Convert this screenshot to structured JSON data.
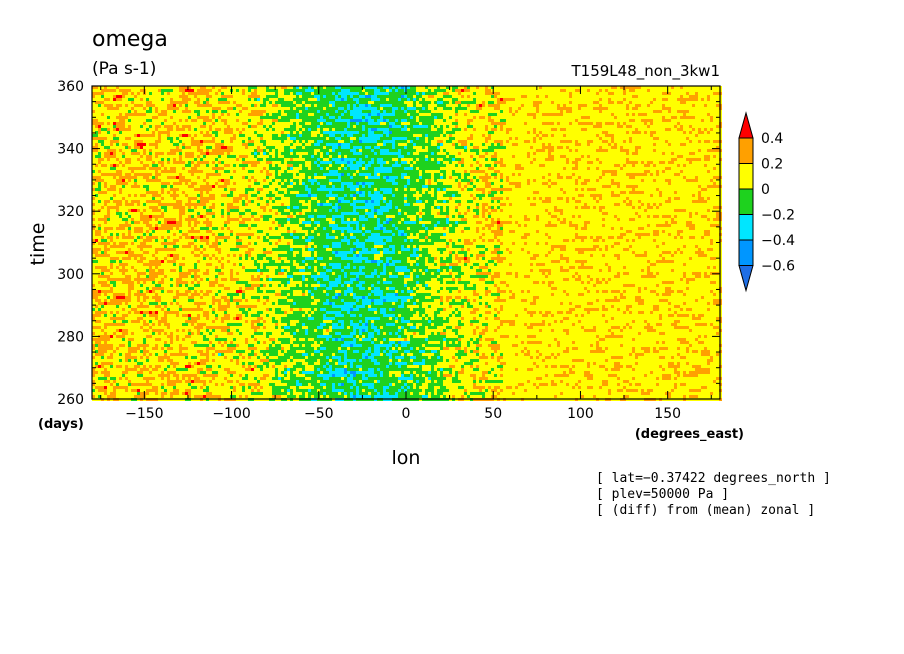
{
  "chart_data": {
    "type": "heatmap",
    "title": "omega",
    "units": "(Pa s-1)",
    "run_name": "T159L48_non_3kw1",
    "xlabel": "lon",
    "x_units": "(degrees_east)",
    "ylabel": "time",
    "y_units": "(days)",
    "xlim": [
      -180,
      180
    ],
    "ylim": [
      260,
      360
    ],
    "x_ticks": [
      -150,
      -100,
      -50,
      0,
      50,
      100,
      150
    ],
    "y_ticks": [
      260,
      280,
      300,
      320,
      340,
      360
    ],
    "x_tick_labels": [
      "−150",
      "−100",
      "−50",
      "0",
      "50",
      "100",
      "150"
    ],
    "y_tick_labels": [
      "260",
      "280",
      "300",
      "320",
      "340",
      "360"
    ],
    "colorbar": {
      "levels": [
        -0.6,
        -0.4,
        -0.2,
        0,
        0.2,
        0.4
      ],
      "labels": [
        "−0.6",
        "−0.4",
        "−0.2",
        "0",
        "0.2",
        "0.4"
      ],
      "colors": [
        "#1e6ee6",
        "#0096ff",
        "#00e6ff",
        "#1ed21e",
        "#ffff00",
        "#ffa000",
        "#ff0000"
      ],
      "extend": "both"
    },
    "notes": [
      "[ lat=−0.37422 degrees_north ]",
      "[ plev=50000 Pa ]",
      "[ (diff) from (mean) zonal ]"
    ]
  }
}
